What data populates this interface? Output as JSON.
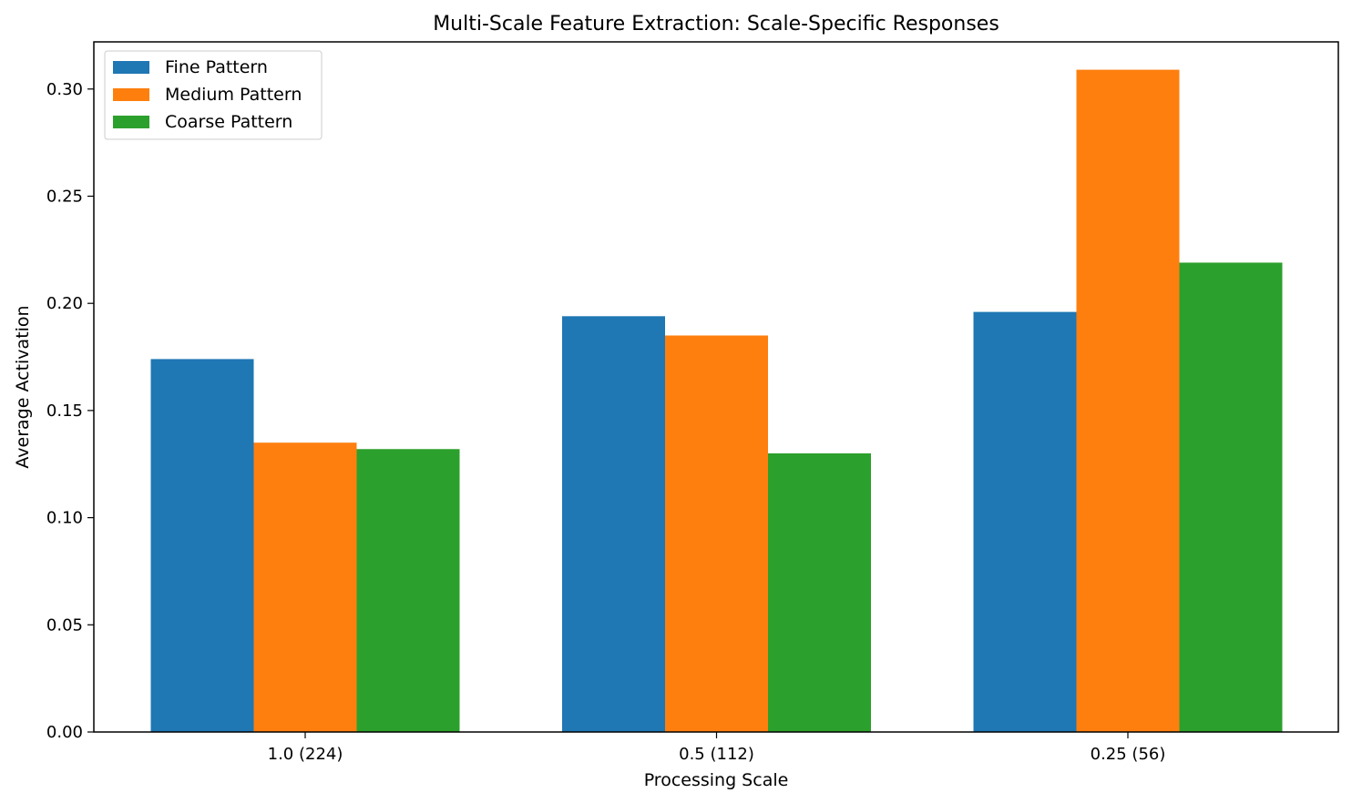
{
  "chart_data": {
    "type": "bar",
    "title": "Multi-Scale Feature Extraction: Scale-Specific Responses",
    "xlabel": "Processing Scale",
    "ylabel": "Average Activation",
    "categories": [
      "1.0 (224)",
      "0.5 (112)",
      "0.25 (56)"
    ],
    "series": [
      {
        "name": "Fine Pattern",
        "color": "#1f77b4",
        "values": [
          0.174,
          0.194,
          0.196
        ]
      },
      {
        "name": "Medium Pattern",
        "color": "#ff7f0e",
        "values": [
          0.135,
          0.185,
          0.309
        ]
      },
      {
        "name": "Coarse Pattern",
        "color": "#2ca02c",
        "values": [
          0.132,
          0.13,
          0.219
        ]
      }
    ],
    "ylim": [
      0,
      0.322
    ],
    "yticks": [
      "0.00",
      "0.05",
      "0.10",
      "0.15",
      "0.20",
      "0.25",
      "0.30"
    ],
    "grid": false,
    "legend_position": "top-left"
  }
}
